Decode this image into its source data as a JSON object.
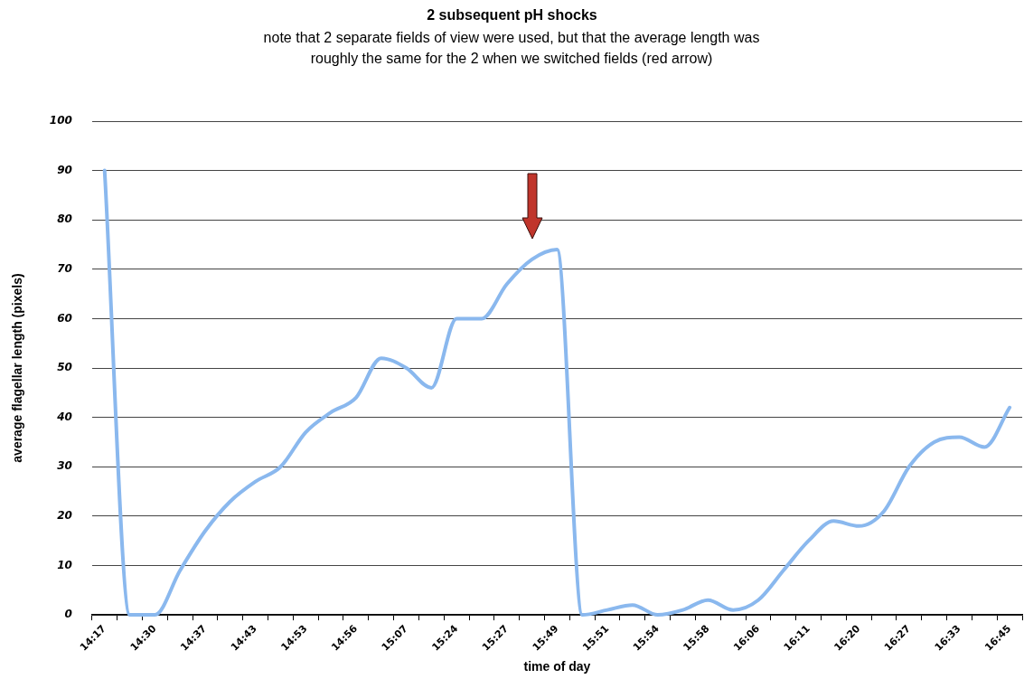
{
  "chart_data": {
    "type": "line",
    "title": "2 subsequent pH shocks",
    "subtitle": "note that 2 separate fields of view were used, but that the average length was roughly the same for the 2 when we switched fields (red arrow)",
    "xlabel": "time of day",
    "ylabel": "average flagellar length (pixels)",
    "categories": [
      "14:17",
      null,
      "14:30",
      null,
      "14:37",
      null,
      "14:43",
      null,
      "14:53",
      null,
      "14:56",
      null,
      "15:07",
      null,
      "15:24",
      null,
      "15:27",
      null,
      "15:49",
      null,
      "15:51",
      null,
      "15:54",
      null,
      "15:58",
      null,
      "16:06",
      null,
      "16:11",
      null,
      "16:20",
      null,
      "16:27",
      null,
      "16:33",
      null,
      "16:45"
    ],
    "series": [
      {
        "color": "#8ab8ee",
        "values": [
          90,
          0,
          0,
          9,
          17,
          23,
          27,
          30,
          37,
          41,
          44,
          52,
          50,
          46,
          60,
          60,
          67,
          72,
          74,
          0,
          1,
          2,
          0,
          1,
          3,
          1,
          3,
          9,
          15,
          19,
          18,
          21,
          30,
          35,
          36,
          34,
          42
        ]
      }
    ],
    "ylim": [
      0,
      100
    ],
    "yticks": [
      0,
      10,
      20,
      30,
      40,
      50,
      60,
      70,
      80,
      90,
      100
    ],
    "grid": "y",
    "marker": "none",
    "line_style": "solid"
  }
}
